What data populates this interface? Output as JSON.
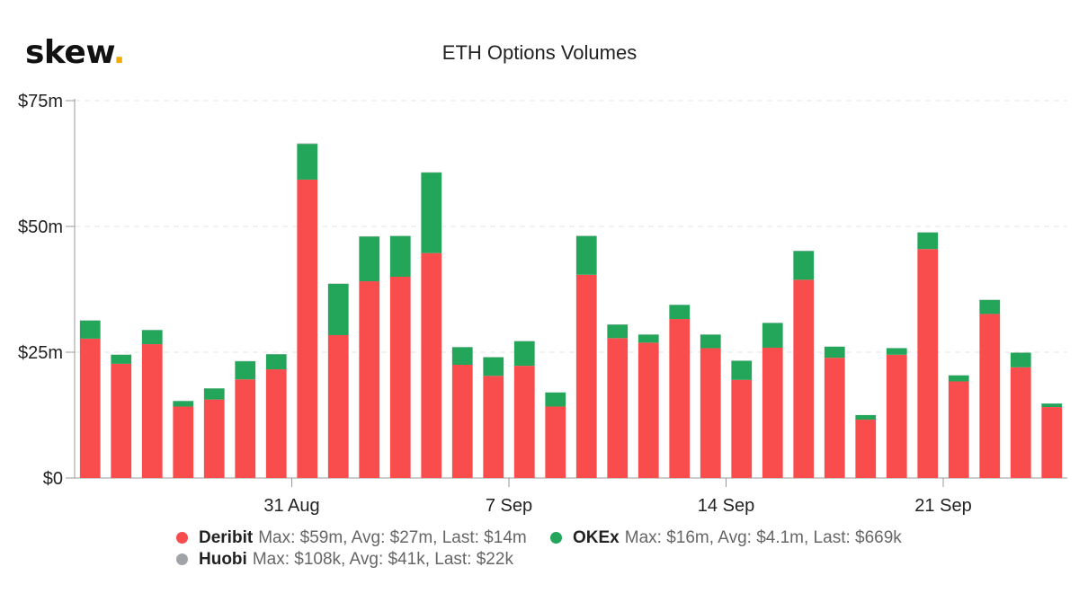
{
  "brand": {
    "name": "skew",
    "dot": "."
  },
  "chart_data": {
    "type": "bar",
    "stacked": true,
    "title": "ETH Options Volumes",
    "xlabel": "",
    "ylabel": "",
    "ylim": [
      0,
      75
    ],
    "y_ticks": [
      "$0",
      "$25m",
      "$50m",
      "$75m"
    ],
    "y_tick_values": [
      0,
      25,
      50,
      75
    ],
    "x_ticks": [
      {
        "label": "31 Aug",
        "index": 6.5
      },
      {
        "label": "7 Sep",
        "index": 13.5
      },
      {
        "label": "14 Sep",
        "index": 20.5
      },
      {
        "label": "21 Sep",
        "index": 27.5
      }
    ],
    "grid": true,
    "legend_position": "bottom",
    "series": [
      {
        "name": "Deribit",
        "color": "#f94d4d",
        "stats": "Max: $59m, Avg: $27m, Last: $14m",
        "values": [
          27.7,
          22.7,
          26.6,
          14.2,
          15.6,
          19.6,
          21.6,
          59.3,
          28.4,
          39.1,
          40.0,
          44.7,
          22.5,
          20.3,
          22.3,
          14.2,
          40.4,
          27.8,
          26.9,
          31.6,
          25.8,
          19.5,
          25.9,
          39.4,
          23.9,
          11.6,
          24.5,
          45.5,
          19.2,
          32.6,
          22.0,
          14.1
        ]
      },
      {
        "name": "OKEx",
        "color": "#23a55a",
        "stats": "Max: $16m, Avg: $4.1m, Last: $669k",
        "values": [
          3.6,
          1.8,
          2.8,
          1.1,
          2.2,
          3.6,
          3.0,
          7.1,
          10.2,
          8.9,
          8.1,
          16.0,
          3.5,
          3.7,
          4.9,
          2.8,
          7.7,
          2.7,
          1.6,
          2.8,
          2.7,
          3.8,
          4.9,
          5.7,
          2.2,
          0.9,
          1.3,
          3.3,
          1.2,
          2.8,
          2.9,
          0.7
        ]
      },
      {
        "name": "Huobi",
        "color": "#a0a4a8",
        "stats": "Max: $108k, Avg: $41k, Last: $22k",
        "values": [
          0.05,
          0.04,
          0.03,
          0.02,
          0.03,
          0.05,
          0.04,
          0.1,
          0.06,
          0.05,
          0.04,
          0.06,
          0.03,
          0.04,
          0.03,
          0.02,
          0.05,
          0.03,
          0.03,
          0.04,
          0.03,
          0.02,
          0.04,
          0.06,
          0.03,
          0.02,
          0.03,
          0.05,
          0.03,
          0.04,
          0.03,
          0.02
        ]
      }
    ]
  }
}
